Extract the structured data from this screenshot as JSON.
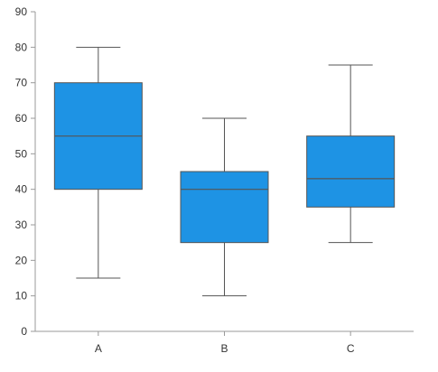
{
  "chart_data": {
    "type": "box",
    "categories": [
      "A",
      "B",
      "C"
    ],
    "boxes": [
      {
        "category": "A",
        "min": 15,
        "q1": 40,
        "median": 55,
        "q3": 70,
        "max": 80
      },
      {
        "category": "B",
        "min": 10,
        "q1": 25,
        "median": 40,
        "q3": 45,
        "max": 60
      },
      {
        "category": "C",
        "min": 25,
        "q1": 35,
        "median": 43,
        "q3": 55,
        "max": 75
      }
    ],
    "ylim": [
      0,
      90
    ],
    "yticks": [
      0,
      10,
      20,
      30,
      40,
      50,
      60,
      70,
      80,
      90
    ],
    "title": "",
    "xlabel": "",
    "ylabel": "",
    "grid": false,
    "legend": "none",
    "box_color": "#1e93e4",
    "line_color": "#555555",
    "axis_color": "#9a9a9a"
  }
}
